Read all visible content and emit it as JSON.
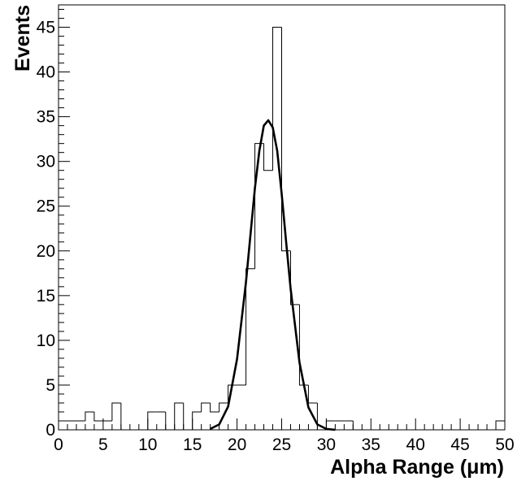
{
  "chart_data": {
    "type": "bar",
    "title": "",
    "xlabel": "Alpha Range (μm)",
    "ylabel": "Events",
    "xlim": [
      0,
      50
    ],
    "ylim": [
      0,
      47.5
    ],
    "grid": false,
    "x_ticks": [
      0,
      5,
      10,
      15,
      20,
      25,
      30,
      35,
      40,
      45,
      50
    ],
    "y_ticks": [
      0,
      5,
      10,
      15,
      20,
      25,
      30,
      35,
      40,
      45
    ],
    "bin_width": 1,
    "histogram": {
      "bin_edges": [
        0,
        1,
        2,
        3,
        4,
        5,
        6,
        7,
        8,
        9,
        10,
        11,
        12,
        13,
        14,
        15,
        16,
        17,
        18,
        19,
        20,
        21,
        22,
        23,
        24,
        25,
        26,
        27,
        28,
        29,
        30,
        31,
        32,
        33,
        34,
        35,
        36,
        37,
        38,
        39,
        40,
        41,
        42,
        43,
        44,
        45,
        46,
        47,
        48,
        49,
        50
      ],
      "counts": [
        1,
        1,
        1,
        2,
        1,
        1,
        3,
        0,
        0,
        0,
        2,
        2,
        0,
        3,
        0,
        2,
        3,
        2,
        3,
        5,
        5,
        18,
        32,
        29,
        45,
        20,
        14,
        5,
        3,
        0,
        1,
        1,
        1,
        0,
        0,
        0,
        0,
        0,
        0,
        0,
        0,
        0,
        0,
        0,
        0,
        0,
        0,
        0,
        0,
        1
      ]
    },
    "fit": {
      "type": "gaussian",
      "x": [
        17,
        18,
        19,
        20,
        21,
        22,
        22.5,
        23,
        23.5,
        24,
        24.5,
        25,
        25.5,
        26,
        27,
        28,
        29,
        30,
        31
      ],
      "y": [
        0.1,
        0.6,
        2.6,
        7.9,
        16.5,
        27.0,
        31.2,
        34.0,
        34.6,
        33.8,
        31.2,
        26.4,
        21.0,
        15.8,
        7.5,
        2.5,
        0.6,
        0.1,
        0.0
      ]
    }
  }
}
